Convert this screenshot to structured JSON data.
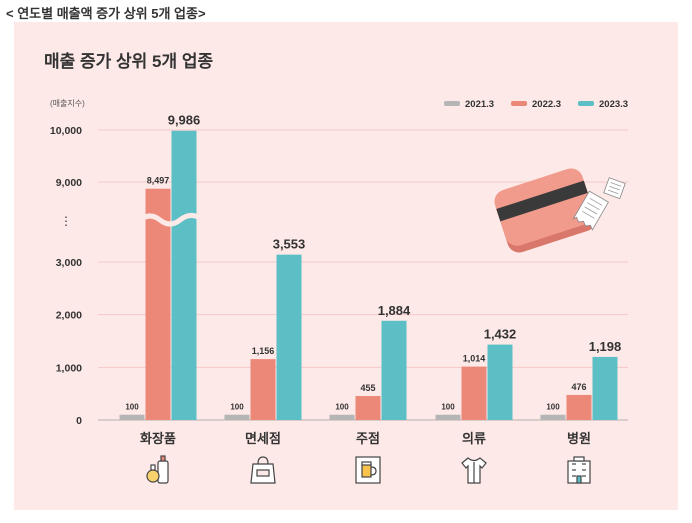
{
  "caption": "< 연도별 매출액 증가 상위 5개 업종>",
  "panel_title": "매출 증가 상위 5개 업종",
  "colors": {
    "panel_bg": "#fde9e8",
    "series_2021": "#b5b5b5",
    "series_2022": "#ec8878",
    "series_2023": "#5cbfc6"
  },
  "icons": [
    "cosmetics-bottles-icon",
    "duty-free-bag-icon",
    "beer-sign-icon",
    "shirt-icon",
    "hospital-building-icon"
  ],
  "chart_data": {
    "type": "bar",
    "ylabel": "(매출지수)",
    "categories": [
      "화장품",
      "면세점",
      "주점",
      "의류",
      "병원"
    ],
    "series": [
      {
        "name": "2021.3",
        "values": [
          100,
          100,
          100,
          100,
          100
        ],
        "labels": [
          "100",
          "100",
          "100",
          "100",
          "100"
        ]
      },
      {
        "name": "2022.3",
        "values": [
          8497,
          1156,
          455,
          1014,
          476
        ],
        "labels": [
          "8,497",
          "1,156",
          "455",
          "1,014",
          "476"
        ]
      },
      {
        "name": "2023.3",
        "values": [
          9986,
          3553,
          1884,
          1432,
          1198
        ],
        "labels": [
          "9,986",
          "3,553",
          "1,884",
          "1,432",
          "1,198"
        ]
      }
    ],
    "yticks": [
      "0",
      "1,000",
      "2,000",
      "3,000",
      "9,000",
      "10,000"
    ],
    "axis_break": {
      "from": 3000,
      "to": 9000,
      "marker": "⋮"
    },
    "ylim": [
      0,
      10000
    ],
    "legend_position": "top-right",
    "grid": true
  }
}
